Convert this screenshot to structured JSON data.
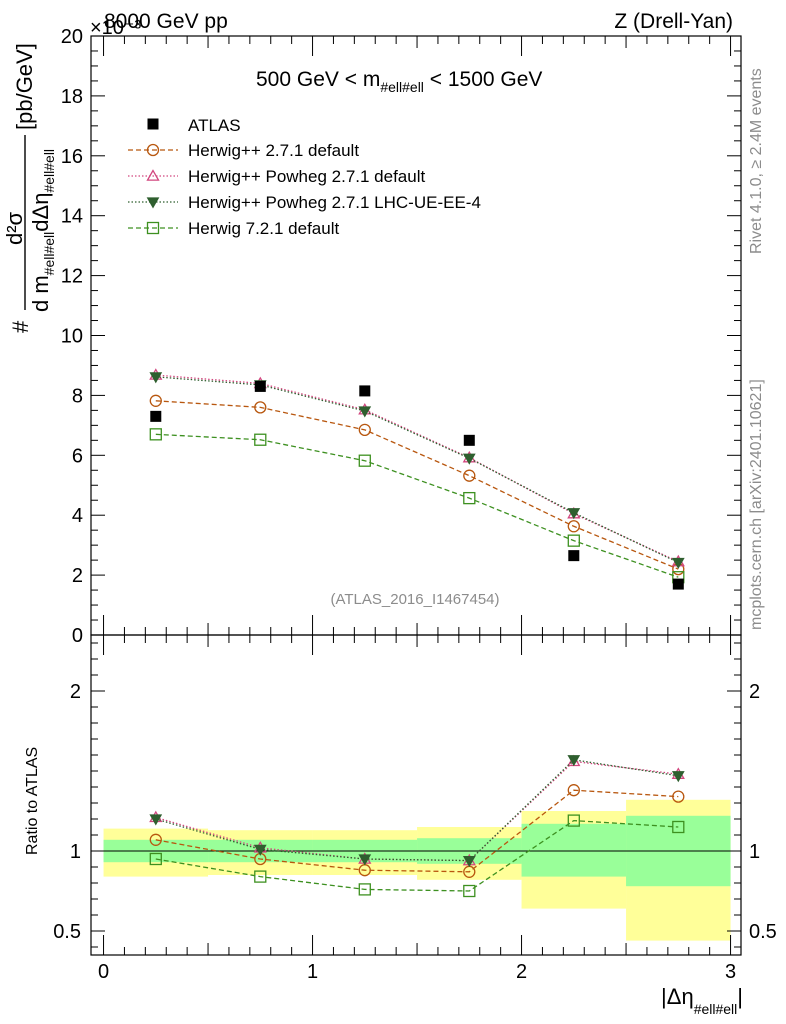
{
  "header": {
    "energy": "8000 GeV pp",
    "process": "Z (Drell-Yan)",
    "exponent": "×10⁻³",
    "mass_range": "500 GeV < m",
    "mass_sub": "#ell#ell",
    "mass_end": " < 1500 GeV"
  },
  "side": {
    "rivet": "Rivet 4.1.0, ≥ 2.4M events",
    "mcplots": "mcplots.cern.ch [arXiv:2401.10621]"
  },
  "analysis_id": "(ATLAS_2016_I1467454)",
  "y_label": {
    "hash": "#",
    "d2sigma": "d²σ",
    "dm": "d m",
    "dm_sub": "#ell#ell",
    "deta": "dΔη",
    "deta_sub": "#ell#ell",
    "unit": "[pb/GeV]"
  },
  "ratio_label": "Ratio to ATLAS",
  "x_label": {
    "main": "|Δη",
    "sub": "#ell#ell",
    "end": "|"
  },
  "chart_data": {
    "type": "line",
    "x": [
      0.25,
      0.75,
      1.25,
      1.75,
      2.25,
      2.75
    ],
    "bin_edges": [
      0,
      0.5,
      1.0,
      1.5,
      2.0,
      2.5,
      3.0
    ],
    "xlim": [
      -0.06,
      3.05
    ],
    "main": {
      "ylim": [
        0,
        20
      ],
      "yticks": [
        "0",
        "2",
        "4",
        "6",
        "8",
        "10",
        "12",
        "14",
        "16",
        "18",
        "20"
      ],
      "data": {
        "name": "ATLAS",
        "values": [
          7.3,
          8.3,
          8.15,
          6.5,
          2.65,
          1.7
        ]
      },
      "series": [
        {
          "name": "Herwig++ 2.7.1 default",
          "color": "#b8570f",
          "dash": "5,3",
          "marker": "circle",
          "values": [
            7.82,
            7.6,
            6.85,
            5.32,
            3.63,
            2.2
          ]
        },
        {
          "name": "Herwig++ Powheg 2.7.1 default",
          "color": "#d2477f",
          "dash": "1.5,2",
          "marker": "triangle-up",
          "values": [
            8.68,
            8.4,
            7.52,
            5.92,
            4.05,
            2.45
          ]
        },
        {
          "name": "Herwig++ Powheg 2.7.1 LHC-UE-EE-4",
          "color": "#2f5f2f",
          "dash": "1.5,2",
          "marker": "triangle-down",
          "values": [
            8.62,
            8.35,
            7.48,
            5.9,
            4.08,
            2.42
          ]
        },
        {
          "name": "Herwig 7.2.1 default",
          "color": "#3d9020",
          "dash": "5,3",
          "marker": "square",
          "values": [
            6.7,
            6.52,
            5.82,
            4.57,
            3.15,
            1.93
          ]
        }
      ]
    },
    "ratio": {
      "ylim": [
        0.35,
        2.35
      ],
      "yticks": [
        "0.5",
        "1",
        "2"
      ],
      "ytick_values": [
        0.5,
        1,
        2
      ],
      "band_stat": [
        [
          0.93,
          1.07
        ],
        [
          0.93,
          1.07
        ],
        [
          0.93,
          1.07
        ],
        [
          0.92,
          1.08
        ],
        [
          0.84,
          1.17
        ],
        [
          0.78,
          1.22
        ]
      ],
      "band_total": [
        [
          0.84,
          1.14
        ],
        [
          0.85,
          1.13
        ],
        [
          0.85,
          1.13
        ],
        [
          0.82,
          1.15
        ],
        [
          0.64,
          1.25
        ],
        [
          0.44,
          1.32
        ]
      ],
      "series": [
        {
          "name": "Herwig++ 2.7.1 default",
          "values": [
            1.07,
            0.95,
            0.88,
            0.87,
            1.38,
            1.34
          ]
        },
        {
          "name": "Herwig++ Powheg 2.7.1 default",
          "values": [
            1.21,
            1.02,
            0.95,
            0.94,
            1.56,
            1.48
          ]
        },
        {
          "name": "Herwig++ Powheg 2.7.1 LHC-UE-EE-4",
          "values": [
            1.2,
            1.01,
            0.95,
            0.94,
            1.57,
            1.47
          ]
        },
        {
          "name": "Herwig 7.2.1 default",
          "values": [
            0.95,
            0.84,
            0.76,
            0.75,
            1.19,
            1.15
          ]
        }
      ]
    },
    "xticks": [
      "0",
      "1",
      "2",
      "3"
    ],
    "xtick_values": [
      0,
      1,
      2,
      3
    ]
  }
}
